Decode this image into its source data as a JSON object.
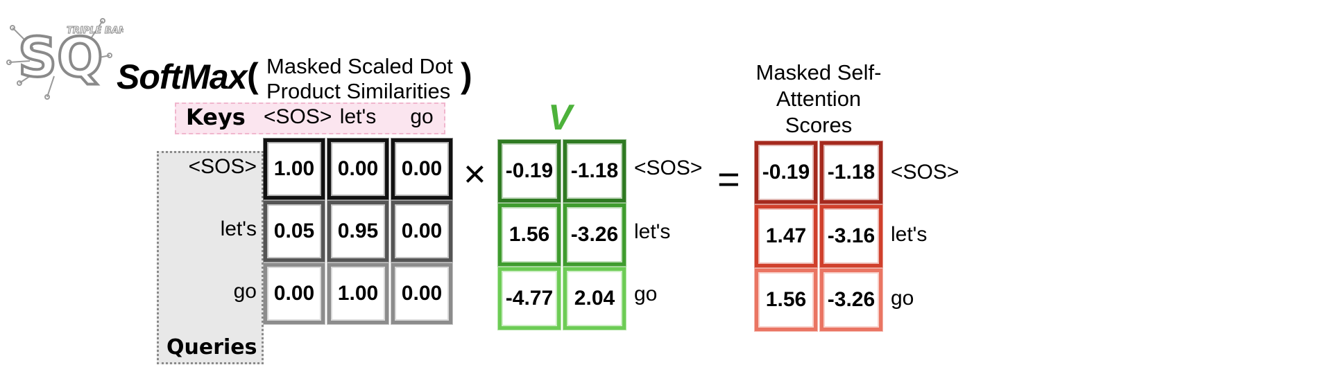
{
  "logo": {
    "text_large": "SQ",
    "text_small": "TRIPLE BAM!!"
  },
  "title": {
    "function": "SoftMax",
    "open_paren": "(",
    "close_paren": ")",
    "argument_line1": "Masked Scaled Dot",
    "argument_line2": "Product Similarities"
  },
  "keys": {
    "label": "Keys",
    "tokens": [
      "<SOS>",
      "let's",
      "go"
    ]
  },
  "queries": {
    "label": "Queries",
    "tokens": [
      "<SOS>",
      "let's",
      "go"
    ]
  },
  "softmax_matrix": {
    "rows": [
      [
        "1.00",
        "0.00",
        "0.00"
      ],
      [
        "0.05",
        "0.95",
        "0.00"
      ],
      [
        "0.00",
        "1.00",
        "0.00"
      ]
    ],
    "row_colors": [
      "#111111",
      "#555555",
      "#8c8c8c"
    ]
  },
  "operators": {
    "multiply": "×",
    "equals": "="
  },
  "values_matrix": {
    "label": "V",
    "label_color": "#4db23b",
    "row_labels": [
      "<SOS>",
      "let's",
      "go"
    ],
    "rows": [
      [
        "-0.19",
        "-1.18"
      ],
      [
        "1.56",
        "-3.26"
      ],
      [
        "-4.77",
        "2.04"
      ]
    ],
    "row_colors": [
      "#2f7a22",
      "#3f9c2e",
      "#6dcc55"
    ]
  },
  "output": {
    "title_line1": "Masked Self-",
    "title_line2": "Attention",
    "title_line3": "Scores",
    "row_labels": [
      "<SOS>",
      "let's",
      "go"
    ],
    "rows": [
      [
        "-0.19",
        "-1.18"
      ],
      [
        "1.47",
        "-3.16"
      ],
      [
        "1.56",
        "-3.26"
      ]
    ],
    "row_colors": [
      "#a52a1e",
      "#d0402c",
      "#ea7563"
    ]
  }
}
